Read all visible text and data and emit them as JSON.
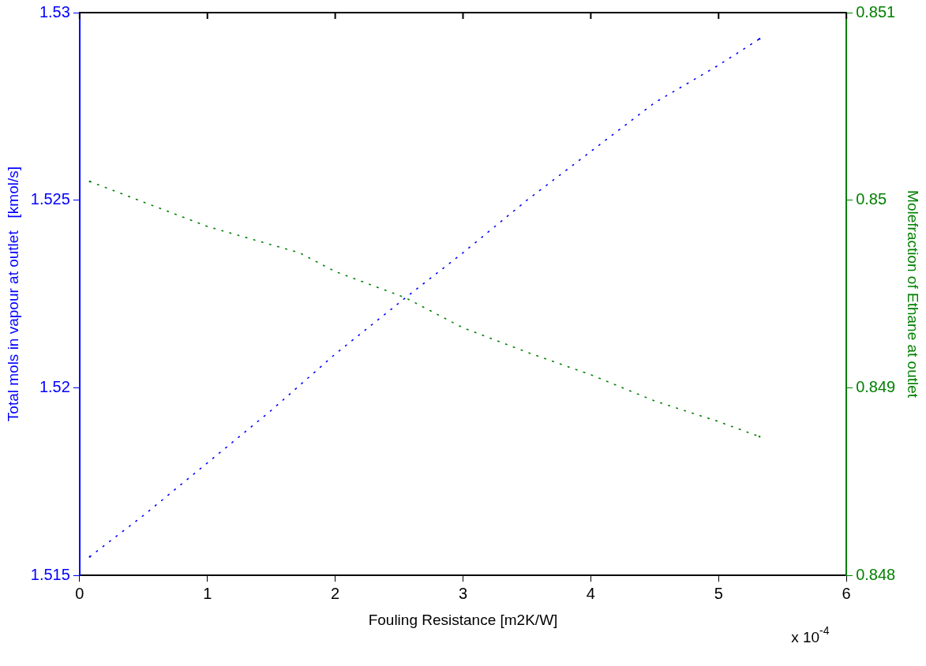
{
  "chart_data": {
    "type": "line",
    "xlabel": "Fouling Resistance [m2K/W]",
    "ylabel": "Total mols in vapour at outlet   [kmol/s]",
    "y2label": "Molefraction of Ethane at outlet",
    "xlim": [
      0,
      6
    ],
    "xticks": [
      0,
      1,
      2,
      3,
      4,
      5,
      6
    ],
    "ylim": [
      1.515,
      1.53
    ],
    "yticks": [
      1.515,
      1.52,
      1.525,
      1.53
    ],
    "y2lim": [
      0.848,
      0.851
    ],
    "y2ticks": [
      0.848,
      0.849,
      0.85,
      0.851
    ],
    "line_style": "dotted",
    "marker": "none",
    "annotations": [
      "x 10$^{-4}$"
    ],
    "series": [
      {
        "color": "#0000ff",
        "x": [
          0.08,
          0.5,
          1,
          1.5,
          2,
          2.55,
          3,
          3.5,
          4,
          4.5,
          5,
          5.32
        ],
        "values": [
          1.5155,
          1.5166,
          1.518,
          1.5194,
          1.5209,
          1.5224,
          1.5236,
          1.525,
          1.5263,
          1.5276,
          1.5286,
          1.5293
        ]
      },
      {
        "color": "#008000",
        "axis": "y2",
        "x": [
          0.08,
          0.5,
          1,
          1.72,
          2,
          2.55,
          3,
          3.5,
          4,
          4.5,
          5,
          5.32
        ],
        "values": [
          0.8501,
          0.84999,
          0.84986,
          0.84972,
          0.84962,
          0.84948,
          0.84932,
          0.84919,
          0.84907,
          0.84893,
          0.84882,
          0.84874
        ]
      }
    ]
  }
}
